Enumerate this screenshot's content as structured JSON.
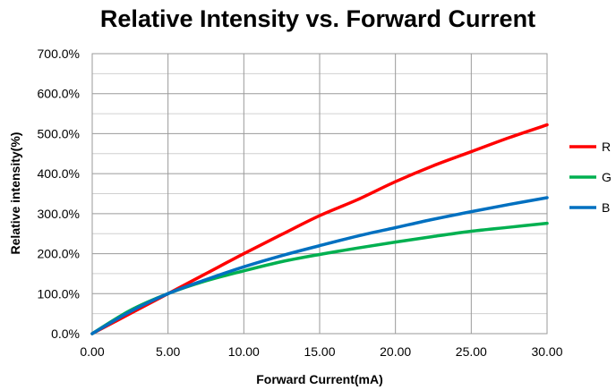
{
  "chart_data": {
    "type": "line",
    "title": "Relative Intensity vs. Forward Current",
    "xlabel": "Forward Current(mA)",
    "ylabel": "Relative intensity(%)",
    "xlim": [
      0,
      30
    ],
    "ylim": [
      0,
      700
    ],
    "x_ticks": [
      "0.00",
      "5.00",
      "10.00",
      "15.00",
      "20.00",
      "25.00",
      "30.00"
    ],
    "y_ticks": [
      "0.0%",
      "100.0%",
      "200.0%",
      "300.0%",
      "400.0%",
      "500.0%",
      "600.0%",
      "700.0%"
    ],
    "grid": true,
    "legend_position": "right",
    "x": [
      0,
      2.5,
      5,
      7.5,
      10,
      12.5,
      15,
      17.5,
      20,
      22.5,
      25,
      27.5,
      30
    ],
    "series": [
      {
        "name": "R",
        "color": "#ff0000",
        "values": [
          0,
          50,
          100,
          150,
          200,
          248,
          295,
          335,
          380,
          420,
          455,
          490,
          522
        ]
      },
      {
        "name": "G",
        "color": "#00b050",
        "values": [
          0,
          58,
          100,
          132,
          157,
          180,
          198,
          214,
          229,
          243,
          256,
          266,
          276
        ]
      },
      {
        "name": "B",
        "color": "#0070c0",
        "values": [
          0,
          55,
          100,
          135,
          167,
          195,
          220,
          244,
          265,
          286,
          305,
          323,
          340
        ]
      }
    ]
  }
}
